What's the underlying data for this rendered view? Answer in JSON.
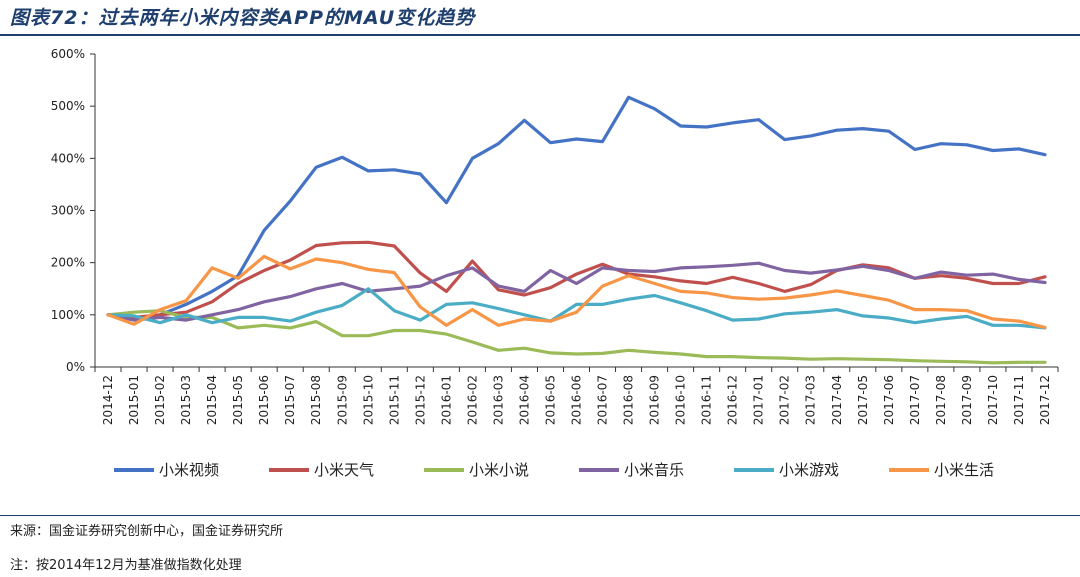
{
  "figure": {
    "title": "图表72：过去两年小米内容类APP的MAU变化趋势",
    "source": "来源：国金证券研究创新中心，国金证券研究所",
    "note": "注：按2014年12月为基准做指数化处理"
  },
  "chart_data": {
    "type": "line",
    "title": "",
    "xlabel": "",
    "ylabel": "",
    "ylim": [
      0,
      600
    ],
    "yticks": [
      "0%",
      "100%",
      "200%",
      "300%",
      "400%",
      "500%",
      "600%"
    ],
    "grid": false,
    "legend_position": "bottom",
    "x": [
      "2014-12",
      "2015-01",
      "2015-02",
      "2015-03",
      "2015-04",
      "2015-05",
      "2015-06",
      "2015-07",
      "2015-08",
      "2015-09",
      "2015-10",
      "2015-11",
      "2015-12",
      "2016-01",
      "2016-02",
      "2016-03",
      "2016-04",
      "2016-05",
      "2016-06",
      "2016-07",
      "2016-08",
      "2016-09",
      "2016-10",
      "2016-11",
      "2016-12",
      "2017-01",
      "2017-02",
      "2017-03",
      "2017-04",
      "2017-05",
      "2017-06",
      "2017-07",
      "2017-08",
      "2017-09",
      "2017-10",
      "2017-11",
      "2017-12"
    ],
    "series": [
      {
        "name": "小米视频",
        "color": "#4472c4",
        "values": [
          100,
          93,
          100,
          120,
          145,
          175,
          262,
          318,
          383,
          402,
          376,
          378,
          370,
          315,
          400,
          428,
          473,
          430,
          437,
          432,
          517,
          495,
          462,
          460,
          468,
          474,
          436,
          443,
          454,
          457,
          452,
          417,
          428,
          426,
          415,
          418,
          407
        ]
      },
      {
        "name": "小米天气",
        "color": "#c0504d",
        "values": [
          100,
          95,
          100,
          105,
          125,
          160,
          185,
          205,
          233,
          238,
          239,
          232,
          180,
          145,
          203,
          148,
          138,
          152,
          178,
          197,
          178,
          173,
          165,
          160,
          172,
          160,
          145,
          158,
          185,
          196,
          190,
          170,
          175,
          170,
          160,
          160,
          173
        ]
      },
      {
        "name": "小米小说",
        "color": "#9bbb59",
        "values": [
          100,
          105,
          108,
          95,
          95,
          75,
          80,
          75,
          87,
          60,
          60,
          70,
          70,
          63,
          48,
          32,
          36,
          27,
          25,
          26,
          32,
          28,
          25,
          20,
          20,
          18,
          17,
          15,
          16,
          15,
          14,
          12,
          11,
          10,
          8,
          9,
          9
        ]
      },
      {
        "name": "小米音乐",
        "color": "#8064a2",
        "values": [
          100,
          90,
          95,
          90,
          100,
          110,
          125,
          135,
          150,
          160,
          145,
          150,
          155,
          175,
          190,
          155,
          145,
          185,
          160,
          190,
          185,
          183,
          190,
          192,
          195,
          199,
          185,
          180,
          186,
          193,
          185,
          170,
          182,
          176,
          178,
          168,
          162
        ]
      },
      {
        "name": "小米游戏",
        "color": "#4bacc6",
        "values": [
          100,
          98,
          85,
          100,
          85,
          95,
          95,
          88,
          105,
          118,
          150,
          108,
          90,
          120,
          123,
          112,
          100,
          88,
          120,
          120,
          130,
          137,
          123,
          108,
          90,
          92,
          102,
          105,
          110,
          98,
          94,
          85,
          92,
          97,
          80,
          80,
          75
        ]
      },
      {
        "name": "小米生活",
        "color": "#f79646",
        "values": [
          100,
          82,
          110,
          127,
          190,
          170,
          212,
          188,
          207,
          200,
          187,
          181,
          115,
          80,
          110,
          80,
          92,
          88,
          105,
          155,
          175,
          160,
          145,
          142,
          133,
          130,
          132,
          138,
          146,
          137,
          128,
          110,
          110,
          108,
          92,
          88,
          76
        ]
      }
    ]
  }
}
